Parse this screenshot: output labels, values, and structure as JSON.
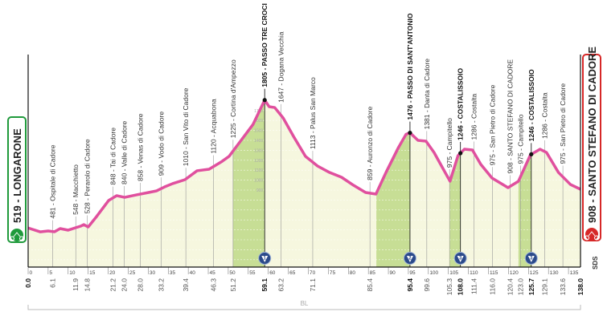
{
  "chart_data": {
    "type": "area",
    "title": "",
    "xlabel": "",
    "ylabel": "",
    "xlim": [
      0,
      138
    ],
    "grid": true,
    "colors": {
      "profile_line": "#e0509e",
      "fill": "#f6f7df",
      "climb_fill": "#c7de95",
      "start_box": "#1f9a3b",
      "finish_box": "#d62828"
    },
    "start": {
      "label": "519 - LONGARONE",
      "icon": "cyclist-icon"
    },
    "finish": {
      "label": "908 - SANTO STEFANO DI CADORE",
      "icon": "cyclist-icon"
    },
    "sds_label": "SDS",
    "province_label": "BL",
    "profile": [
      [
        0,
        519
      ],
      [
        3,
        480
      ],
      [
        5,
        489
      ],
      [
        6.6,
        481
      ],
      [
        8,
        513
      ],
      [
        10,
        497
      ],
      [
        13.1,
        537
      ],
      [
        13.9,
        553
      ],
      [
        15,
        529
      ],
      [
        17.1,
        634
      ],
      [
        20.1,
        795
      ],
      [
        22.1,
        844
      ],
      [
        24.1,
        827
      ],
      [
        27.1,
        852
      ],
      [
        30.1,
        876
      ],
      [
        32.1,
        892
      ],
      [
        34.1,
        932
      ],
      [
        36.1,
        965
      ],
      [
        39.2,
        1005
      ],
      [
        42.2,
        1094
      ],
      [
        45.2,
        1110
      ],
      [
        48.2,
        1182
      ],
      [
        50.2,
        1239
      ],
      [
        53.2,
        1400
      ],
      [
        56.2,
        1561
      ],
      [
        59.1,
        1805
      ],
      [
        60.2,
        1739
      ],
      [
        61.6,
        1730
      ],
      [
        63.7,
        1626
      ],
      [
        66.3,
        1440
      ],
      [
        69.3,
        1239
      ],
      [
        72.3,
        1142
      ],
      [
        75.3,
        1077
      ],
      [
        78.3,
        1029
      ],
      [
        81.3,
        948
      ],
      [
        84.3,
        876
      ],
      [
        86.9,
        860
      ],
      [
        89.4,
        1077
      ],
      [
        92.4,
        1319
      ],
      [
        94.4,
        1460
      ],
      [
        95.4,
        1476
      ],
      [
        97.4,
        1400
      ],
      [
        99.4,
        1392
      ],
      [
        101.4,
        1279
      ],
      [
        103.4,
        1134
      ],
      [
        105.4,
        989
      ],
      [
        107.4,
        1247
      ],
      [
        109,
        1311
      ],
      [
        111,
        1303
      ],
      [
        113.1,
        1158
      ],
      [
        115.9,
        1021
      ],
      [
        119.9,
        924
      ],
      [
        122.5,
        989
      ],
      [
        125.5,
        1255
      ],
      [
        127.9,
        1311
      ],
      [
        129.5,
        1279
      ],
      [
        132.5,
        1077
      ],
      [
        135.5,
        956
      ],
      [
        138,
        908
      ]
    ],
    "climbs": [
      {
        "from": 51.2,
        "to": 59.1,
        "category": "1"
      },
      {
        "from": 87.0,
        "to": 95.4,
        "category": "2"
      },
      {
        "from": 105.3,
        "to": 108.0,
        "category": "3"
      },
      {
        "from": 122.5,
        "to": 125.7,
        "category": "3"
      }
    ],
    "elevation_ticks": [
      "900",
      "1000",
      "1100",
      "1200",
      "1300",
      "1400",
      "1500",
      "1600",
      "1700"
    ],
    "km_ticks": [
      "0",
      "5",
      "10",
      "15",
      "20",
      "25",
      "30",
      "35",
      "40",
      "45",
      "50",
      "55",
      "60",
      "65",
      "70",
      "75",
      "80",
      "85",
      "90",
      "95",
      "100",
      "105",
      "110",
      "115",
      "120",
      "125",
      "130",
      "135"
    ],
    "landmarks": [
      {
        "km": 6.1,
        "dist": "6.1",
        "label": "481 - Ospitale di Cadore",
        "bold": false
      },
      {
        "km": 11.9,
        "dist": "11.9",
        "label": "548 - Macchietto",
        "bold": false
      },
      {
        "km": 14.8,
        "dist": "14.8",
        "label": "528 - Perarolo di Cadore",
        "bold": false
      },
      {
        "km": 21.2,
        "dist": "21.2",
        "label": "848 - Tai di Cadore",
        "bold": false
      },
      {
        "km": 24.0,
        "dist": "24.0",
        "label": "840 - Valle di Cadore",
        "bold": false
      },
      {
        "km": 28.0,
        "dist": "28.0",
        "label": "858 - Venas di Cadore",
        "bold": false
      },
      {
        "km": 33.2,
        "dist": "33.2",
        "label": "909 - Vodo di Cadore",
        "bold": false
      },
      {
        "km": 39.4,
        "dist": "39.4",
        "label": "1010 - San Vito di Cadore",
        "bold": false
      },
      {
        "km": 46.3,
        "dist": "46.3",
        "label": "1120 - Acquabona",
        "bold": false
      },
      {
        "km": 51.2,
        "dist": "51.2",
        "label": "1225 - Cortina d'Ampezzo",
        "bold": false
      },
      {
        "km": 59.1,
        "dist": "59.1",
        "label": "1805 - PASSO TRE CROCI",
        "bold": true
      },
      {
        "km": 63.2,
        "dist": "63.2",
        "label": "1647 - Dogana Vecchia",
        "bold": false
      },
      {
        "km": 71.1,
        "dist": "71.1",
        "label": "1113 - Palus San Marco",
        "bold": false
      },
      {
        "km": 85.4,
        "dist": "85.4",
        "label": "859 - Auronzo di Cadore",
        "bold": false
      },
      {
        "km": 95.4,
        "dist": "95.4",
        "label": "1476 - PASSO DI SANT'ANTONIO",
        "bold": true
      },
      {
        "km": 99.6,
        "dist": "99.6",
        "label": "1381 - Danta di Cadore",
        "bold": false
      },
      {
        "km": 105.3,
        "dist": "105.3",
        "label": "975 - Campitello",
        "bold": false
      },
      {
        "km": 108.0,
        "dist": "108.0",
        "label": "1246 - COSTALISSOIO",
        "bold": true
      },
      {
        "km": 111.4,
        "dist": "111.4",
        "label": "1286 - Costalta",
        "bold": false
      },
      {
        "km": 116.0,
        "dist": "116.0",
        "label": "975 - San Pietro di Cadore",
        "bold": false
      },
      {
        "km": 120.4,
        "dist": "120.4",
        "label": "908 - SANTO STEFANO DI CADORE",
        "bold": false
      },
      {
        "km": 123.0,
        "dist": "123.0",
        "label": "975 - Campitello",
        "bold": false
      },
      {
        "km": 125.7,
        "dist": "125.7",
        "label": "1246 - COSTALISSOIO",
        "bold": true
      },
      {
        "km": 129.1,
        "dist": "129.1",
        "label": "1286 - Costalta",
        "bold": false
      },
      {
        "km": 133.6,
        "dist": "133.6",
        "label": "975 - San Pietro di Cadore",
        "bold": false
      }
    ],
    "start_dist": "0.0",
    "finish_dist": "138.0"
  }
}
